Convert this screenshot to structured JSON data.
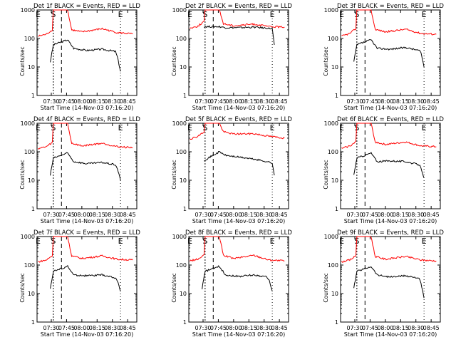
{
  "figure": {
    "xlabel": "Start Time (14-Nov-03 07:16:20)",
    "ylabel": "Counts/sec",
    "x_ticks": [
      "07:30",
      "07:45",
      "08:00",
      "08:15",
      "08:30",
      "08:45"
    ],
    "y_ticks": [
      "1",
      "10",
      "100",
      "1000"
    ],
    "markers": [
      {
        "label": "E",
        "x": "07:17"
      },
      {
        "label": "S",
        "x": "07:32"
      },
      {
        "label": "E",
        "x": "08:38"
      }
    ],
    "colors": {
      "events": "#000000",
      "lld": "#ff0000",
      "axes": "#000000"
    }
  },
  "chart_data": [
    {
      "type": "line",
      "title": "Det 1f BLACK = Events, RED = LLD",
      "xlabel": "Start Time (14-Nov-03 07:16:20)",
      "ylabel": "Counts/sec",
      "yscale": "log",
      "ylim": [
        1,
        1000
      ],
      "x_unit": "time",
      "xlim": [
        "07:16",
        "08:54"
      ],
      "series": [
        {
          "name": "Events",
          "color": "#000000",
          "x": [
            "07:29",
            "07:32",
            "07:46",
            "07:52",
            "08:05",
            "08:20",
            "08:33",
            "08:35",
            "08:38"
          ],
          "y": [
            15,
            60,
            90,
            45,
            38,
            42,
            35,
            22,
            7
          ]
        },
        {
          "name": "LLD",
          "color": "#ff0000",
          "x": [
            "07:17",
            "07:25",
            "07:31",
            "07:32",
            "07:46",
            "07:50",
            "08:00",
            "08:20",
            "08:35",
            "08:50"
          ],
          "y": [
            120,
            140,
            200,
            1000,
            1000,
            200,
            170,
            220,
            160,
            145
          ]
        }
      ]
    },
    {
      "type": "line",
      "title": "Det 2f BLACK = Events, RED = LLD",
      "xlabel": "Start Time (14-Nov-03 07:16:20)",
      "ylabel": "Counts/sec",
      "yscale": "log",
      "ylim": [
        1,
        1000
      ],
      "x_unit": "time",
      "xlim": [
        "07:16",
        "08:54"
      ],
      "series": [
        {
          "name": "Events",
          "color": "#000000",
          "x": [
            "07:31",
            "07:46",
            "07:52",
            "08:05",
            "08:20",
            "08:33",
            "08:38",
            "08:40"
          ],
          "y": [
            260,
            260,
            240,
            240,
            250,
            230,
            220,
            60
          ]
        },
        {
          "name": "LLD",
          "color": "#ff0000",
          "x": [
            "07:17",
            "07:25",
            "07:31",
            "07:32",
            "07:46",
            "07:50",
            "08:00",
            "08:20",
            "08:35",
            "08:50"
          ],
          "y": [
            230,
            270,
            400,
            1000,
            1000,
            330,
            280,
            320,
            260,
            250
          ]
        }
      ]
    },
    {
      "type": "line",
      "title": "Det 3f BLACK = Events, RED = LLD",
      "xlabel": "Start Time (14-Nov-03 07:16:20)",
      "ylabel": "Counts/sec",
      "yscale": "log",
      "ylim": [
        1,
        1000
      ],
      "x_unit": "time",
      "xlim": [
        "07:16",
        "08:54"
      ],
      "series": [
        {
          "name": "Events",
          "color": "#000000",
          "x": [
            "07:29",
            "07:32",
            "07:46",
            "07:52",
            "08:05",
            "08:20",
            "08:33",
            "08:35",
            "08:38"
          ],
          "y": [
            15,
            60,
            90,
            45,
            42,
            48,
            38,
            32,
            10
          ]
        },
        {
          "name": "LLD",
          "color": "#ff0000",
          "x": [
            "07:17",
            "07:25",
            "07:31",
            "07:32",
            "07:46",
            "07:50",
            "08:00",
            "08:20",
            "08:35",
            "08:50"
          ],
          "y": [
            120,
            150,
            220,
            1000,
            1000,
            210,
            170,
            210,
            150,
            140
          ]
        }
      ]
    },
    {
      "type": "line",
      "title": "Det 4f BLACK = Events, RED = LLD",
      "xlabel": "Start Time (14-Nov-03 07:16:20)",
      "ylabel": "Counts/sec",
      "yscale": "log",
      "ylim": [
        1,
        1000
      ],
      "x_unit": "time",
      "xlim": [
        "07:16",
        "08:54"
      ],
      "series": [
        {
          "name": "Events",
          "color": "#000000",
          "x": [
            "07:29",
            "07:32",
            "07:46",
            "07:52",
            "08:05",
            "08:20",
            "08:33",
            "08:35",
            "08:38"
          ],
          "y": [
            15,
            60,
            90,
            45,
            38,
            42,
            35,
            25,
            10
          ]
        },
        {
          "name": "LLD",
          "color": "#ff0000",
          "x": [
            "07:17",
            "07:25",
            "07:31",
            "07:32",
            "07:46",
            "07:50",
            "08:00",
            "08:20",
            "08:35",
            "08:50"
          ],
          "y": [
            130,
            150,
            210,
            1000,
            1000,
            200,
            160,
            200,
            150,
            140
          ]
        }
      ]
    },
    {
      "type": "line",
      "title": "Det 5f BLACK = Events, RED = LLD",
      "xlabel": "Start Time (14-Nov-03 07:16:20)",
      "ylabel": "Counts/sec",
      "yscale": "log",
      "ylim": [
        1,
        1000
      ],
      "x_unit": "time",
      "xlim": [
        "07:16",
        "08:54"
      ],
      "series": [
        {
          "name": "Events",
          "color": "#000000",
          "x": [
            "07:31",
            "07:46",
            "07:52",
            "08:05",
            "08:20",
            "08:33",
            "08:38",
            "08:40"
          ],
          "y": [
            50,
            100,
            75,
            65,
            55,
            45,
            40,
            15
          ]
        },
        {
          "name": "LLD",
          "color": "#ff0000",
          "x": [
            "07:17",
            "07:25",
            "07:31",
            "07:32",
            "07:46",
            "07:50",
            "08:00",
            "08:20",
            "08:35",
            "08:50"
          ],
          "y": [
            280,
            350,
            500,
            1000,
            1000,
            500,
            420,
            430,
            350,
            300
          ]
        }
      ]
    },
    {
      "type": "line",
      "title": "Det 6f BLACK = Events, RED = LLD",
      "xlabel": "Start Time (14-Nov-03 07:16:20)",
      "ylabel": "Counts/sec",
      "yscale": "log",
      "ylim": [
        1,
        1000
      ],
      "x_unit": "time",
      "xlim": [
        "07:16",
        "08:54"
      ],
      "series": [
        {
          "name": "Events",
          "color": "#000000",
          "x": [
            "07:29",
            "07:32",
            "07:46",
            "07:52",
            "08:05",
            "08:20",
            "08:33",
            "08:35",
            "08:38"
          ],
          "y": [
            15,
            60,
            90,
            45,
            48,
            45,
            35,
            28,
            12
          ]
        },
        {
          "name": "LLD",
          "color": "#ff0000",
          "x": [
            "07:17",
            "07:25",
            "07:31",
            "07:32",
            "07:46",
            "07:50",
            "08:00",
            "08:20",
            "08:35",
            "08:50"
          ],
          "y": [
            130,
            160,
            220,
            1000,
            1000,
            220,
            180,
            220,
            160,
            150
          ]
        }
      ]
    },
    {
      "type": "line",
      "title": "Det 7f BLACK = Events, RED = LLD",
      "xlabel": "Start Time (14-Nov-03 07:16:20)",
      "ylabel": "Counts/sec",
      "yscale": "log",
      "ylim": [
        1,
        1000
      ],
      "x_unit": "time",
      "xlim": [
        "07:16",
        "08:54"
      ],
      "series": [
        {
          "name": "Events",
          "color": "#000000",
          "x": [
            "07:29",
            "07:32",
            "07:46",
            "07:52",
            "08:05",
            "08:20",
            "08:33",
            "08:35",
            "08:38"
          ],
          "y": [
            15,
            60,
            90,
            45,
            42,
            45,
            35,
            28,
            12
          ]
        },
        {
          "name": "LLD",
          "color": "#ff0000",
          "x": [
            "07:17",
            "07:25",
            "07:31",
            "07:32",
            "07:46",
            "07:50",
            "08:00",
            "08:20",
            "08:35",
            "08:50"
          ],
          "y": [
            130,
            150,
            210,
            1000,
            1000,
            210,
            170,
            210,
            160,
            150
          ]
        }
      ]
    },
    {
      "type": "line",
      "title": "Det 8f BLACK = Events, RED = LLD",
      "xlabel": "Start Time (14-Nov-03 07:16:20)",
      "ylabel": "Counts/sec",
      "yscale": "log",
      "ylim": [
        1,
        1000
      ],
      "x_unit": "time",
      "xlim": [
        "07:16",
        "08:54"
      ],
      "series": [
        {
          "name": "Events",
          "color": "#000000",
          "x": [
            "07:29",
            "07:32",
            "07:46",
            "07:52",
            "08:05",
            "08:20",
            "08:33",
            "08:35",
            "08:38"
          ],
          "y": [
            15,
            60,
            90,
            45,
            40,
            45,
            38,
            28,
            12
          ]
        },
        {
          "name": "LLD",
          "color": "#ff0000",
          "x": [
            "07:17",
            "07:25",
            "07:31",
            "07:32",
            "07:46",
            "07:50",
            "08:00",
            "08:20",
            "08:35",
            "08:50"
          ],
          "y": [
            140,
            160,
            220,
            1000,
            1000,
            220,
            170,
            220,
            150,
            140
          ]
        }
      ]
    },
    {
      "type": "line",
      "title": "Det 9f BLACK = Events, RED = LLD",
      "xlabel": "Start Time (14-Nov-03 07:16:20)",
      "ylabel": "Counts/sec",
      "yscale": "log",
      "ylim": [
        1,
        1000
      ],
      "x_unit": "time",
      "xlim": [
        "07:16",
        "08:54"
      ],
      "series": [
        {
          "name": "Events",
          "color": "#000000",
          "x": [
            "07:29",
            "07:32",
            "07:46",
            "07:52",
            "08:05",
            "08:20",
            "08:33",
            "08:35",
            "08:38"
          ],
          "y": [
            15,
            60,
            90,
            45,
            38,
            42,
            35,
            22,
            7
          ]
        },
        {
          "name": "LLD",
          "color": "#ff0000",
          "x": [
            "07:17",
            "07:25",
            "07:31",
            "07:32",
            "07:46",
            "07:50",
            "08:00",
            "08:20",
            "08:35",
            "08:50"
          ],
          "y": [
            130,
            150,
            210,
            1000,
            1000,
            200,
            160,
            200,
            150,
            140
          ]
        }
      ]
    }
  ]
}
